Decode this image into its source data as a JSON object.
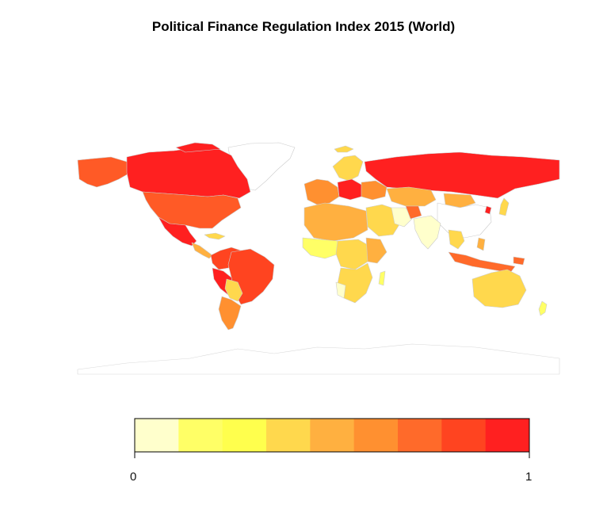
{
  "title": "Political Finance Regulation Index 2015 (World)",
  "legend": {
    "min_label": "0",
    "max_label": "1",
    "colors": [
      "#FFFFCC",
      "#FFFF66",
      "#FFFF4D",
      "#FFD84D",
      "#FFB040",
      "#FF9030",
      "#FF6A2A",
      "#FF4420",
      "#FF2020"
    ]
  },
  "map_colors": {
    "no_data": "#FFFFFF",
    "border": "#CCCCCC",
    "antarctica_border": "#D8D8D8"
  }
}
